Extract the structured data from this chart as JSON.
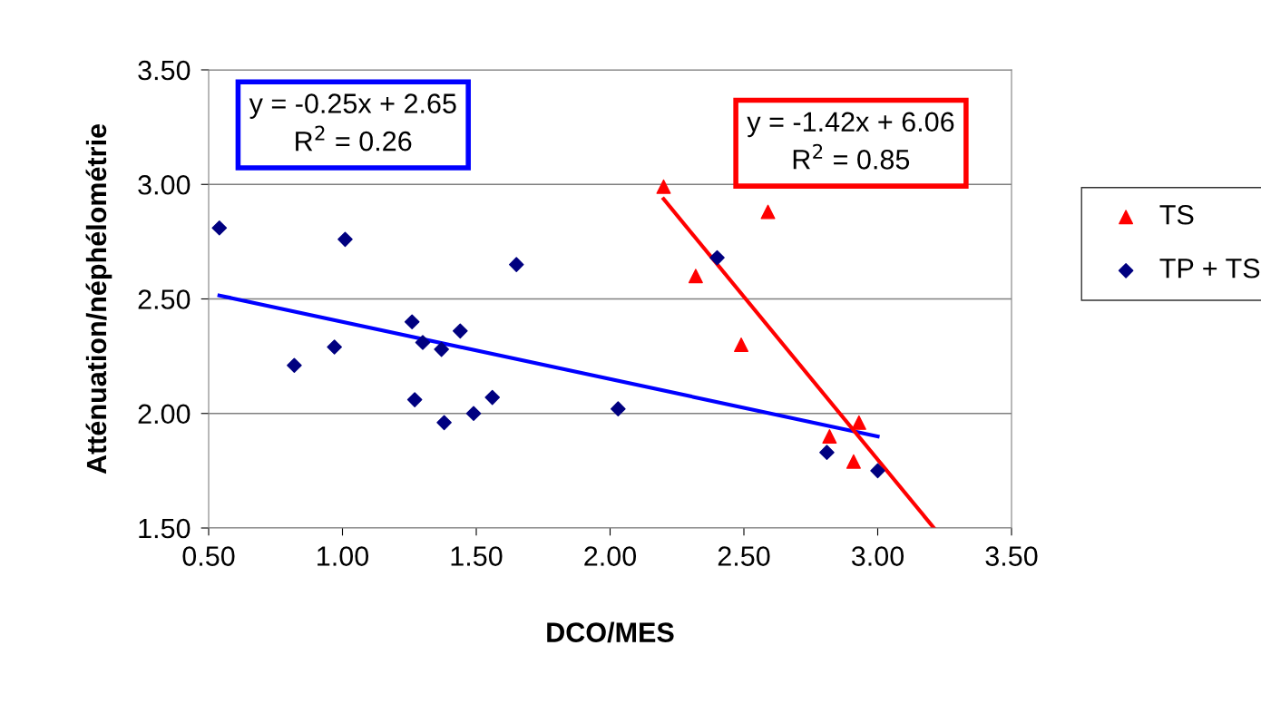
{
  "chart_data": {
    "type": "scatter",
    "xlabel": "DCO/MES",
    "ylabel": "Atténuation/néphélométrie",
    "xlim": [
      0.5,
      3.5
    ],
    "ylim": [
      1.5,
      3.5
    ],
    "xticks": [
      {
        "value": 0.5,
        "label": "0.50"
      },
      {
        "value": 1.0,
        "label": "1.00"
      },
      {
        "value": 1.5,
        "label": "1.50"
      },
      {
        "value": 2.0,
        "label": "2.00"
      },
      {
        "value": 2.5,
        "label": "2.50"
      },
      {
        "value": 3.0,
        "label": "3.00"
      },
      {
        "value": 3.5,
        "label": "3.50"
      }
    ],
    "yticks": [
      {
        "value": 1.5,
        "label": "1.50"
      },
      {
        "value": 2.0,
        "label": "2.00"
      },
      {
        "value": 2.5,
        "label": "2.50"
      },
      {
        "value": 3.0,
        "label": "3.00"
      },
      {
        "value": 3.5,
        "label": "3.50"
      }
    ],
    "grid": "y",
    "legend": "right",
    "series": [
      {
        "name": "TS",
        "color": "#ff0000",
        "marker": "triangle",
        "x": [
          2.2,
          2.32,
          2.49,
          2.59,
          2.82,
          2.93,
          2.91
        ],
        "values": [
          2.99,
          2.6,
          2.3,
          2.88,
          1.9,
          1.96,
          1.79
        ]
      },
      {
        "name": "TP + TS",
        "color": "#000080",
        "marker": "diamond",
        "x": [
          0.54,
          0.82,
          0.97,
          1.01,
          1.26,
          1.27,
          1.3,
          1.37,
          1.38,
          1.44,
          1.49,
          1.56,
          1.65,
          2.03,
          2.4,
          2.81,
          3.0
        ],
        "values": [
          2.81,
          2.21,
          2.29,
          2.76,
          2.4,
          2.06,
          2.31,
          2.28,
          1.96,
          2.36,
          2.0,
          2.07,
          2.65,
          2.02,
          2.68,
          1.83,
          1.75
        ]
      },
      {
        "type": "line",
        "color": "#0000ff",
        "x": [
          0.54,
          3.0
        ],
        "values": [
          2.515,
          1.9
        ]
      },
      {
        "type": "line",
        "color": "#ff0000",
        "x": [
          2.2,
          3.21
        ],
        "values": [
          2.936,
          1.5
        ]
      }
    ],
    "annotations": [
      "y = -0.25x + 2.65\nR$^{2}$ = 0.26",
      "y = -1.42x + 6.06\nR$^{2}$ = 0.85"
    ]
  }
}
